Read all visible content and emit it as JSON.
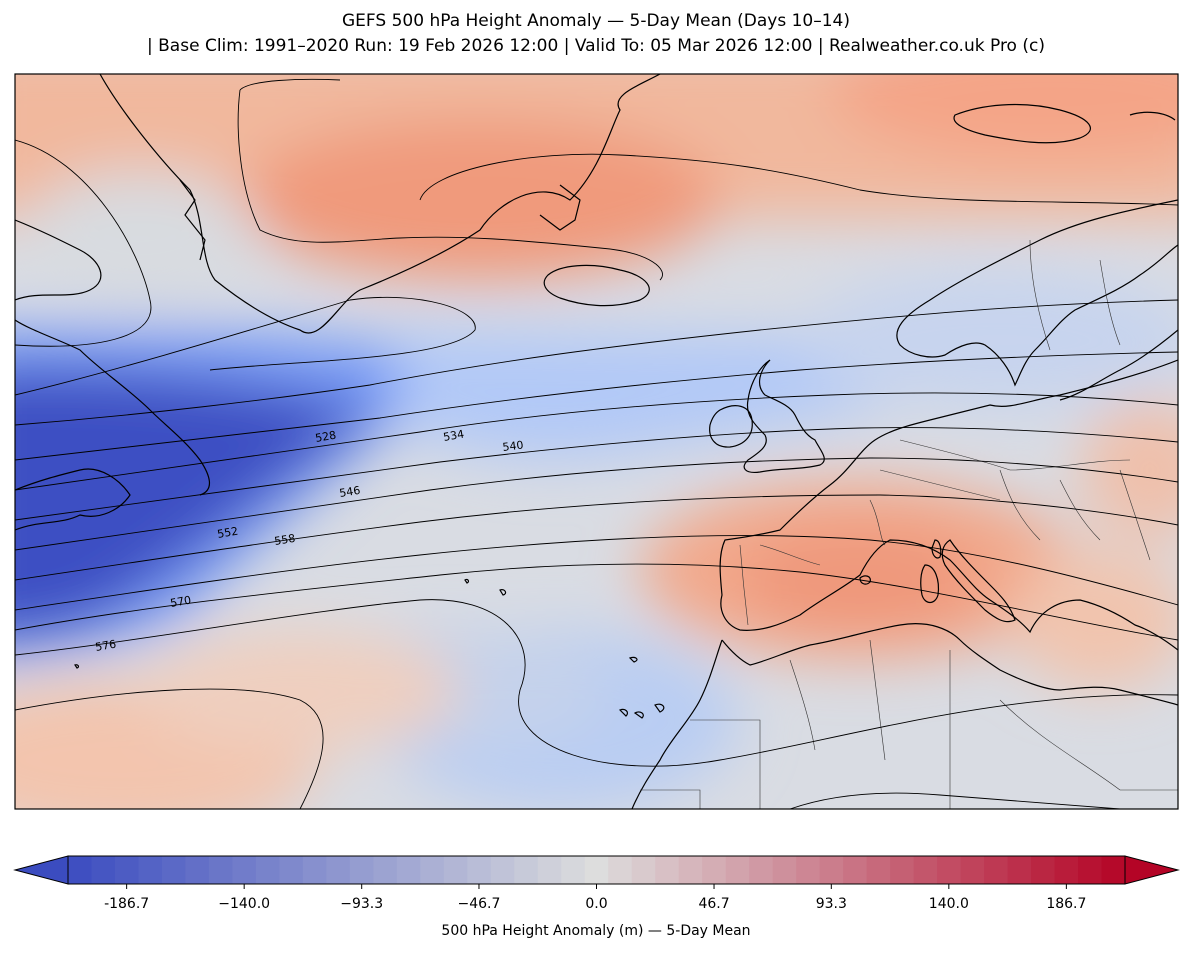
{
  "header": {
    "title": "GEFS 500 hPa Height Anomaly — 5-Day Mean (Days 10–14)",
    "subtitle": "| Base Clim: 1991–2020 Run: 19 Feb 2026 12:00 | Valid To: 05 Mar 2026 12:00 | Realweather.co.uk Pro (c)"
  },
  "colorbar": {
    "label": "500 hPa Height Anomaly (m) — 5-Day Mean",
    "ticks": [
      "-186.7",
      "−140.0",
      "−93.3",
      "−46.7",
      "0.0",
      "46.7",
      "93.3",
      "140.0",
      "186.7"
    ],
    "tick_values": [
      -186.7,
      -140.0,
      -93.3,
      -46.7,
      0.0,
      46.7,
      93.3,
      140.0,
      186.7
    ],
    "range": [
      -210,
      210
    ],
    "extend": "both",
    "colormap": "coolwarm",
    "color_low": "#3b4cc0",
    "color_mid": "#dddddd",
    "color_high": "#b40426"
  },
  "map": {
    "contour_labels": [
      "528",
      "534",
      "540",
      "546",
      "552",
      "558",
      "570",
      "576"
    ],
    "land_outline_color": "#000000",
    "border_color": "#333333"
  }
}
